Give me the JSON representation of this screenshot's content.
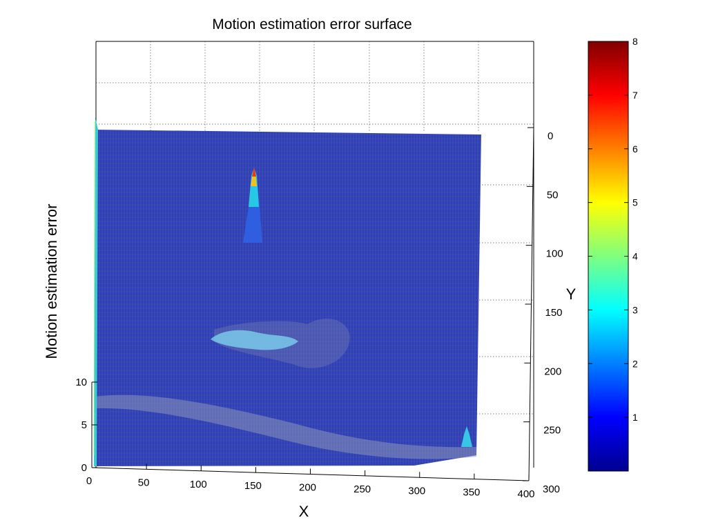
{
  "chart_data": {
    "type": "surface",
    "title": "Motion estimation error surface",
    "xlabel": "X",
    "ylabel": "Y",
    "zlabel": "Motion estimation error",
    "xlim": [
      0,
      400
    ],
    "ylim": [
      0,
      300
    ],
    "zlim": [
      0,
      15
    ],
    "x_ticks": [
      "0",
      "50",
      "100",
      "150",
      "200",
      "250",
      "300",
      "350",
      "400"
    ],
    "y_ticks": [
      "0",
      "50",
      "100",
      "150",
      "200",
      "250",
      "300"
    ],
    "z_ticks": [
      "0",
      "5",
      "10"
    ],
    "grid": true,
    "colormap": "jet",
    "colorbar": {
      "range": [
        0,
        8
      ],
      "ticks": [
        "1",
        "2",
        "3",
        "4",
        "5",
        "6",
        "7",
        "8"
      ],
      "placement": "right"
    },
    "surface_extent": {
      "x": [
        0,
        360
      ],
      "y": [
        0,
        300
      ]
    },
    "baseline_error": 0.3,
    "peaks": [
      {
        "x": 150,
        "y": 40,
        "error": 8.0
      },
      {
        "x": 150,
        "y": 170,
        "error": 3.0
      },
      {
        "x": 340,
        "y": 270,
        "error": 2.5
      },
      {
        "x": 5,
        "y": 0,
        "error": 3.5
      }
    ],
    "colors": {
      "surface": "#3a49a6",
      "mesh_line": "#1f2fd2",
      "background": "#ffffff"
    }
  }
}
